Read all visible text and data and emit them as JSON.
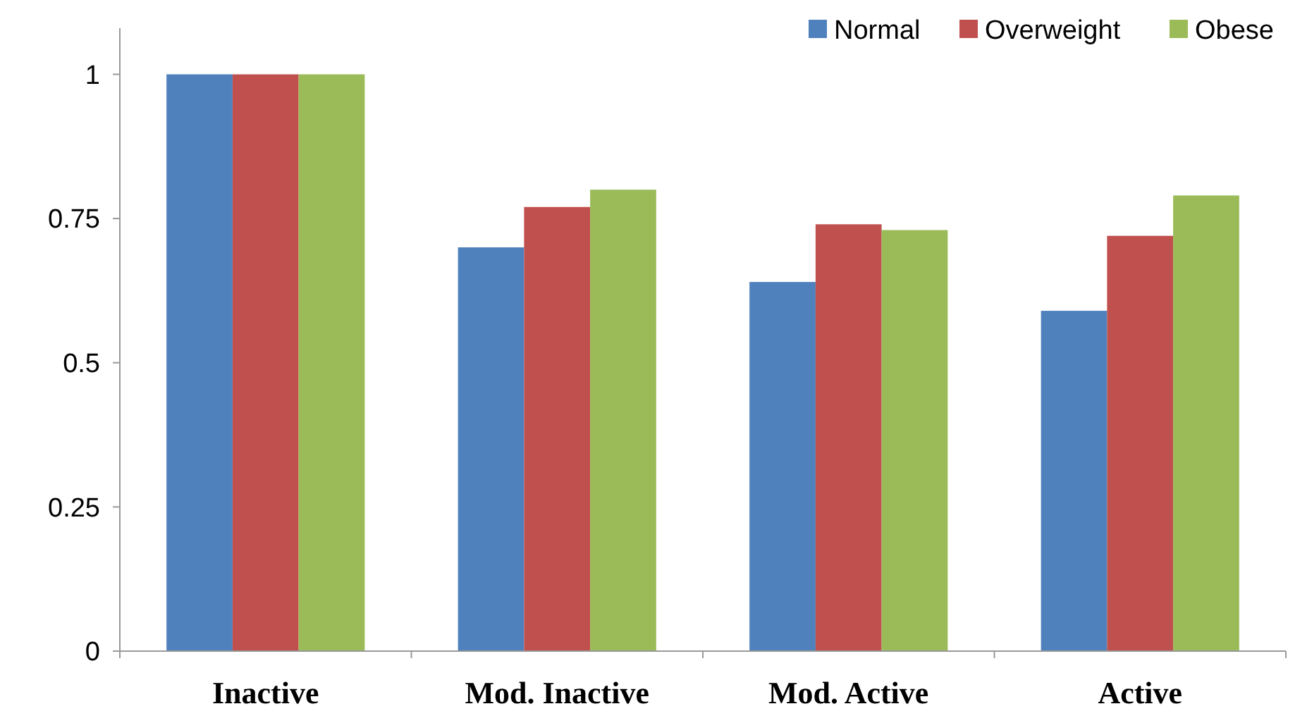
{
  "chart_data": {
    "type": "bar",
    "categories": [
      "Inactive",
      "Mod. Inactive",
      "Mod. Active",
      "Active"
    ],
    "series": [
      {
        "name": "Normal",
        "color": "#4f81bd",
        "values": [
          1,
          0.7,
          0.64,
          0.59
        ]
      },
      {
        "name": "Overweight",
        "color": "#c0504d",
        "values": [
          1,
          0.77,
          0.74,
          0.72
        ]
      },
      {
        "name": "Obese",
        "color": "#9bbb59",
        "values": [
          1,
          0.8,
          0.73,
          0.79
        ]
      }
    ],
    "ylim": [
      0,
      1.08
    ],
    "yticks": [
      0,
      0.25,
      0.5,
      0.75,
      1
    ],
    "grid": false,
    "legend": "top right"
  }
}
